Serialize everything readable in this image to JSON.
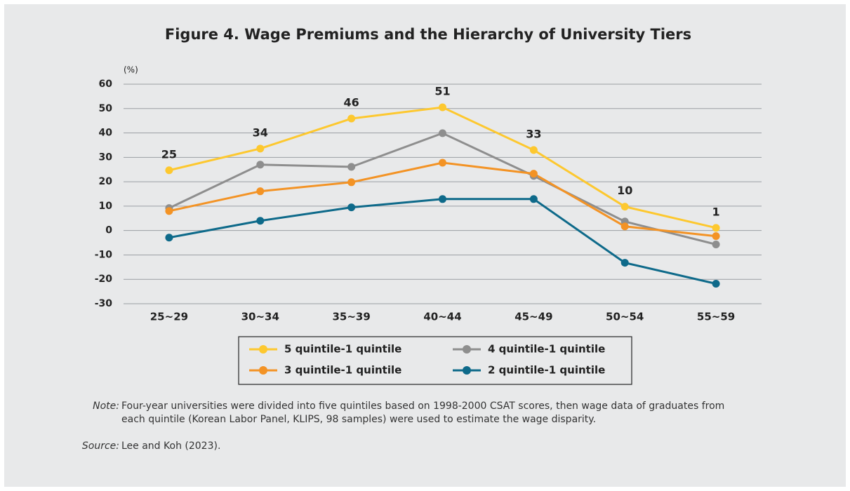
{
  "chart_data": {
    "type": "line",
    "title": "Figure 4. Wage Premiums and the Hierarchy of University Tiers",
    "y_unit": "(%)",
    "categories": [
      "25~29",
      "30~34",
      "35~39",
      "40~44",
      "45~49",
      "50~54",
      "55~59"
    ],
    "series": [
      {
        "name": "5 quintile-1 quintile",
        "color": "#fdc82f",
        "values": [
          24.7,
          33.6,
          45.9,
          50.5,
          33.0,
          9.8,
          1.1
        ],
        "value_labels": [
          "25",
          "34",
          "46",
          "51",
          "33",
          "10",
          "1"
        ]
      },
      {
        "name": "4 quintile-1 quintile",
        "color": "#8e8e8e",
        "values": [
          9.2,
          27.0,
          26.1,
          39.9,
          22.4,
          3.7,
          -5.7
        ]
      },
      {
        "name": "3 quintile-1 quintile",
        "color": "#f39325",
        "values": [
          8.0,
          16.1,
          19.8,
          27.8,
          23.3,
          1.7,
          -2.3
        ]
      },
      {
        "name": "2 quintile-1 quintile",
        "color": "#0e6a8a",
        "values": [
          -2.9,
          4.0,
          9.5,
          12.9,
          12.9,
          -13.2,
          -21.8
        ]
      }
    ],
    "ylim": [
      -30,
      60
    ],
    "yticks": [
      -30,
      -20,
      -10,
      0,
      10,
      20,
      30,
      40,
      50,
      60
    ],
    "grid": true
  },
  "note": {
    "label": "Note:",
    "text": "Four-year universities were divided into five quintiles based on 1998-2000 CSAT scores, then wage data of graduates from each quintile (Korean Labor Panel, KLIPS, 98 samples) were used to estimate the wage disparity."
  },
  "source": {
    "label": "Source:",
    "text": "Lee and Koh (2023)."
  }
}
